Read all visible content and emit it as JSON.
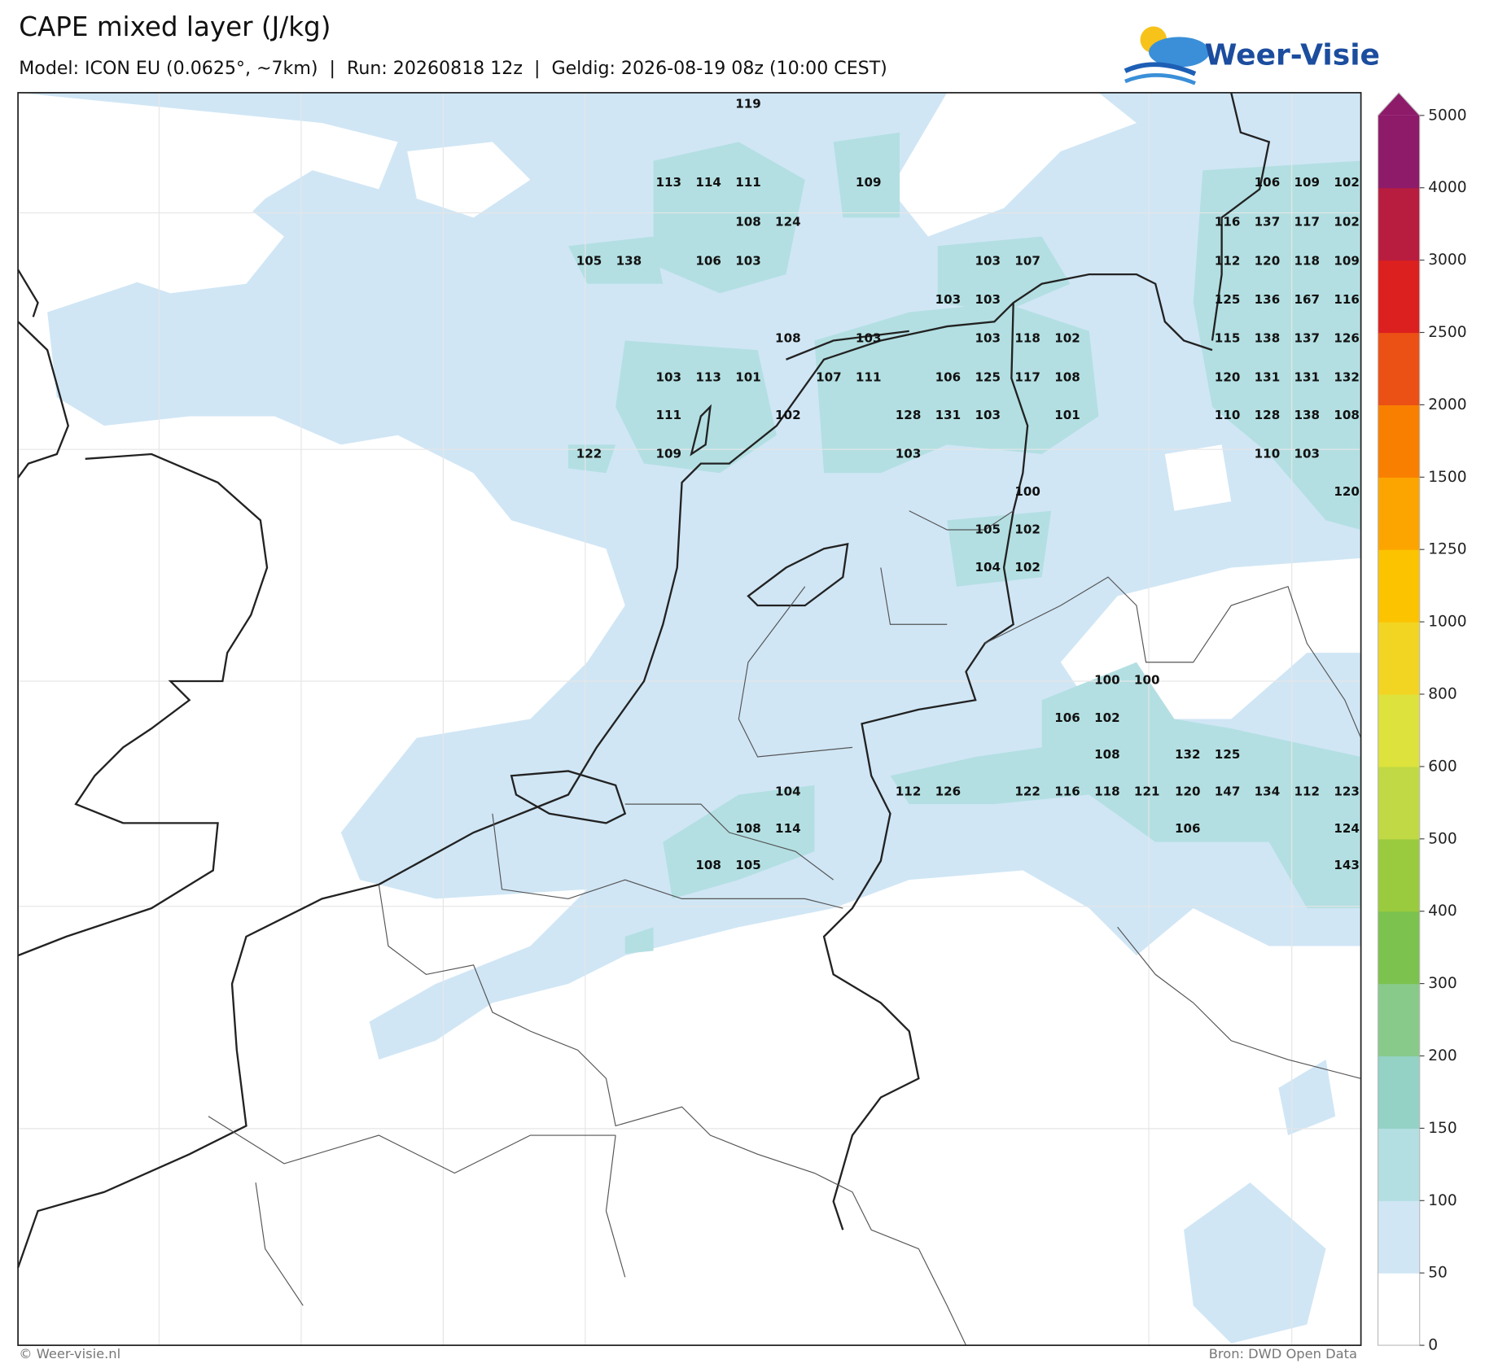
{
  "header": {
    "title": "CAPE mixed layer (J/kg)",
    "subtitle": "Model: ICON EU (0.0625°, ~7km)  |  Run: 20260818 12z  |  Geldig: 2026-08-19 08z (10:00 CEST)"
  },
  "logo": "Weer-Visie",
  "colorbar": {
    "levels": [
      0,
      50,
      100,
      150,
      200,
      300,
      400,
      500,
      600,
      800,
      1000,
      1250,
      1500,
      2000,
      2500,
      3000,
      4000,
      5000
    ],
    "colors": [
      "#ffffff",
      "#d0e6f5",
      "#b3dfe2",
      "#93d2c5",
      "#88ca8a",
      "#7cc24f",
      "#9acb3e",
      "#c0d944",
      "#dde23c",
      "#f2d522",
      "#fbc300",
      "#fca500",
      "#f97f00",
      "#eb5014",
      "#dc1f1f",
      "#b81d3f",
      "#8e1a6a"
    ]
  },
  "map": {
    "labels": [
      [
        119
      ],
      [
        113,
        114,
        111,
        109,
        106,
        109,
        102
      ],
      [
        108,
        124,
        116,
        137,
        117,
        102
      ],
      [
        105,
        138,
        106,
        103,
        103,
        107,
        112,
        120,
        118,
        109
      ],
      [
        103,
        103,
        125,
        136,
        167,
        116
      ],
      [
        108,
        103,
        103,
        118,
        102,
        115,
        138,
        137,
        126
      ],
      [
        103,
        113,
        101,
        107,
        111,
        106,
        125,
        117,
        108,
        120,
        131,
        131,
        132
      ],
      [
        111,
        102,
        128,
        131,
        103,
        101,
        110,
        128,
        138,
        108
      ],
      [
        122,
        109,
        103,
        110,
        103
      ],
      [
        100,
        120
      ],
      [
        105,
        102
      ],
      [
        104,
        102
      ],
      [
        100,
        100
      ],
      [
        106,
        102
      ],
      [
        108,
        132,
        125
      ],
      [
        104,
        112,
        126,
        122,
        116,
        118,
        121,
        120,
        147,
        134,
        112,
        123
      ],
      [
        108,
        114,
        106,
        124
      ],
      [
        108,
        105,
        143
      ]
    ]
  },
  "footer": {
    "left": "© Weer-visie.nl",
    "right": "Bron: DWD Open Data"
  }
}
